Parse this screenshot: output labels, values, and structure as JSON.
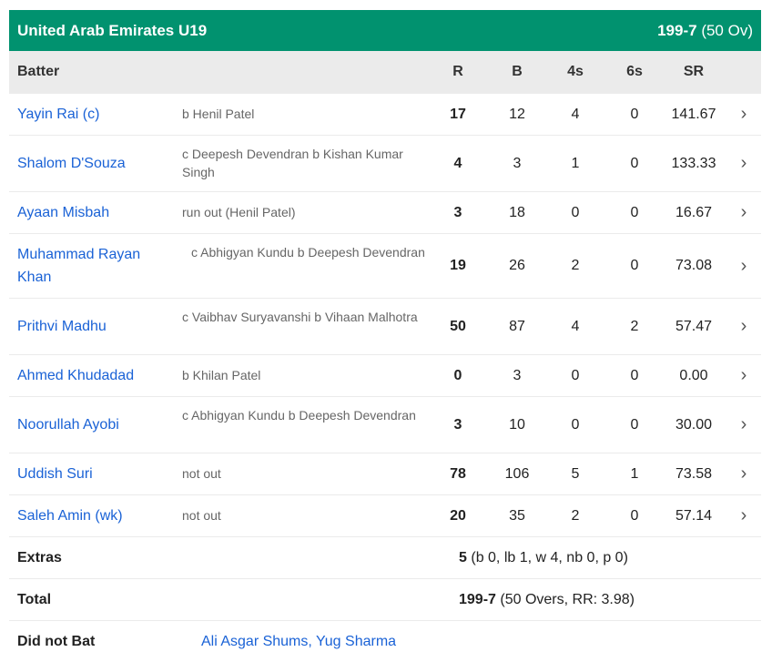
{
  "team": {
    "name": "United Arab Emirates U19",
    "score": "199-7",
    "overs": "(50 Ov)"
  },
  "columns": {
    "batter": "Batter",
    "r": "R",
    "b": "B",
    "fours": "4s",
    "sixes": "6s",
    "sr": "SR"
  },
  "batters": [
    {
      "name": "Yayin Rai (c)",
      "dismissal": "b Henil Patel",
      "r": "17",
      "b": "12",
      "fours": "4",
      "sixes": "0",
      "sr": "141.67"
    },
    {
      "name": "Shalom D'Souza",
      "dismissal": "c Deepesh Devendran b Kishan Kumar Singh",
      "r": "4",
      "b": "3",
      "fours": "1",
      "sixes": "0",
      "sr": "133.33"
    },
    {
      "name": "Ayaan Misbah",
      "dismissal": "run out (Henil Patel)",
      "r": "3",
      "b": "18",
      "fours": "0",
      "sixes": "0",
      "sr": "16.67"
    },
    {
      "name": "Muhammad Rayan Khan",
      "dismissal": "c Abhigyan Kundu b Deepesh Devendran",
      "r": "19",
      "b": "26",
      "fours": "2",
      "sixes": "0",
      "sr": "73.08"
    },
    {
      "name": "Prithvi Madhu",
      "dismissal": "c Vaibhav Suryavanshi b Vihaan Malhotra",
      "r": "50",
      "b": "87",
      "fours": "4",
      "sixes": "2",
      "sr": "57.47"
    },
    {
      "name": "Ahmed Khudadad",
      "dismissal": "b Khilan Patel",
      "r": "0",
      "b": "3",
      "fours": "0",
      "sixes": "0",
      "sr": "0.00"
    },
    {
      "name": "Noorullah Ayobi",
      "dismissal": "c Abhigyan Kundu b Deepesh Devendran",
      "r": "3",
      "b": "10",
      "fours": "0",
      "sixes": "0",
      "sr": "30.00"
    },
    {
      "name": "Uddish Suri",
      "dismissal": "not out",
      "r": "78",
      "b": "106",
      "fours": "5",
      "sixes": "1",
      "sr": "73.58"
    },
    {
      "name": "Saleh Amin (wk)",
      "dismissal": "not out",
      "r": "20",
      "b": "35",
      "fours": "2",
      "sixes": "0",
      "sr": "57.14"
    }
  ],
  "extras": {
    "label": "Extras",
    "total": "5",
    "detail": "(b 0, lb 1, w 4, nb 0, p 0)"
  },
  "total": {
    "label": "Total",
    "score": "199-7",
    "detail": "(50 Overs, RR: 3.98)"
  },
  "did_not_bat": {
    "label": "Did not Bat",
    "players": "Ali Asgar Shums, Yug Sharma"
  },
  "colors": {
    "header": "#01926f",
    "link": "#1a62d6",
    "colhead_bg": "#ebebeb"
  }
}
